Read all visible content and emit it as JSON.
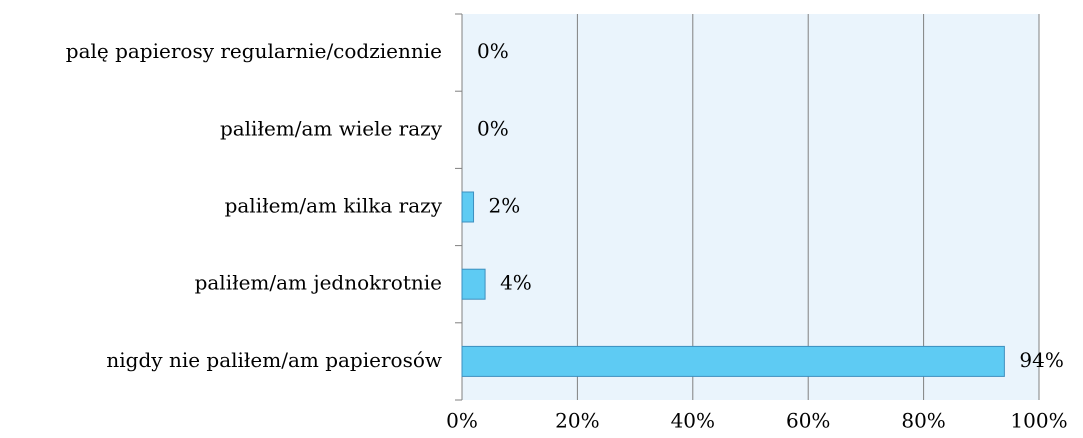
{
  "chart_data": {
    "type": "barh",
    "categories": [
      "palę papierosy regularnie/codziennie",
      "paliłem/am wiele razy",
      "paliłem/am kilka razy",
      "paliłem/am jednokrotnie",
      "nigdy nie paliłem/am papierosów"
    ],
    "values": [
      0,
      0,
      2,
      4,
      94
    ],
    "value_labels": [
      "0%",
      "0%",
      "2%",
      "4%",
      "94%"
    ],
    "color": "#5ecbf3",
    "xlim": [
      0,
      100
    ],
    "xticks": [
      {
        "value": 0,
        "label": "0%"
      },
      {
        "value": 20,
        "label": "20%"
      },
      {
        "value": 40,
        "label": "40%"
      },
      {
        "value": 60,
        "label": "60%"
      },
      {
        "value": 80,
        "label": "80%"
      },
      {
        "value": 100,
        "label": "100%"
      }
    ],
    "grid": true
  }
}
